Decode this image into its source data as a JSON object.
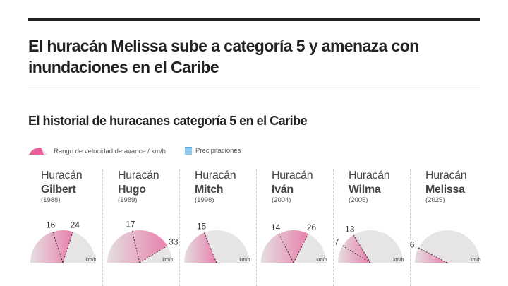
{
  "header": {
    "title": "El huracán Melissa sube a categoría 5 y amenaza con inundaciones en el Caribe"
  },
  "chart_data": {
    "type": "gauge",
    "title": "El historial de huracanes categoría 5 en el Caribe",
    "unit": "km/h",
    "range": [
      0,
      40
    ],
    "legend": [
      {
        "label": "Rango de velocidad de avance / km/h",
        "color": "#e8609a"
      },
      {
        "label": "Precipitaciones",
        "color": "#8cc8ea"
      }
    ],
    "hurricanes": [
      {
        "prefix": "Huracán",
        "name": "Gilbert",
        "year": "(1988)",
        "min": 16,
        "max": 24
      },
      {
        "prefix": "Huracán",
        "name": "Hugo",
        "year": "(1989)",
        "min": 17,
        "max": 33
      },
      {
        "prefix": "Huracán",
        "name": "Mitch",
        "year": "(1998)",
        "min": 15,
        "max": 15
      },
      {
        "prefix": "Huracán",
        "name": "Iván",
        "year": "(2004)",
        "min": 14,
        "max": 26
      },
      {
        "prefix": "Huracán",
        "name": "Wilma",
        "year": "(2005)",
        "min": 7,
        "max": 13
      },
      {
        "prefix": "Huracán",
        "name": "Melissa",
        "year": "(2025)",
        "min": 6,
        "max": 6
      }
    ]
  },
  "colors": {
    "pink": "#e8609a",
    "gray": "#e6e4e4"
  }
}
